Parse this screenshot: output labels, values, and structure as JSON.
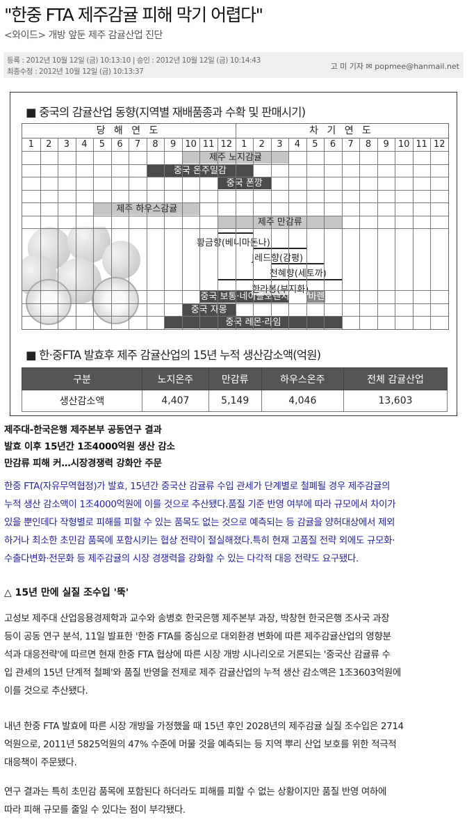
{
  "article": {
    "title": "\"한중 FTA 제주감귤 피해 막기 어렵다\"",
    "subtitle": "<와이드> 개방 앞둔 제주 감귤산업 진단",
    "meta": {
      "registered": "등록 : 2012년 10월 12일 (금) 10:13:10 | 승인 : 2012년 10월 12일 (금) 10:14:43",
      "modified": "최종수정 : 2012년 10월 12일 (금) 10:13:37",
      "byline": "고 미 기자 ✉ popmee@hanmail.net"
    }
  },
  "figure": {
    "chart_title": "■ 중국의 감귤산업 동향(지역별 재배품종과 수확 및 판매시기)",
    "year_headers": [
      "당 해 연 도",
      "차 기 연 도"
    ],
    "months": [
      "1",
      "2",
      "3",
      "4",
      "5",
      "6",
      "7",
      "8",
      "9",
      "10",
      "11",
      "12",
      "1",
      "2",
      "3",
      "4",
      "5",
      "6",
      "7",
      "8",
      "9",
      "10",
      "11",
      "12"
    ],
    "colors": {
      "light": "#c6c6c6",
      "dark": "#4b4b4b",
      "mid": "#8a8a8a"
    },
    "bars": [
      {
        "label": "제주 노지감귤",
        "start": 9,
        "end": 15,
        "row": 0,
        "style": "light"
      },
      {
        "label": "중국 온주밀감",
        "start": 7,
        "end": 13,
        "row": 1,
        "style": "dark"
      },
      {
        "label": "중국 폰깡",
        "start": 11,
        "end": 14,
        "row": 2,
        "style": "dark"
      },
      {
        "label": "제주 하우스감귤",
        "start": 4,
        "end": 10,
        "row": 4,
        "style": "light"
      },
      {
        "label": "제주 만감류",
        "start": 11,
        "end": 18,
        "row": 5,
        "style": "light"
      },
      {
        "label": "중국 보통·네이블오렌지",
        "start": 10,
        "end": 15,
        "row": 11,
        "style": "dark"
      },
      {
        "label": "바렌시아 오렌지",
        "start": 16,
        "end": 17,
        "row": 11,
        "style": "mid"
      },
      {
        "label": "중국 자몽",
        "start": 9,
        "end": 12,
        "row": 12,
        "style": "dark"
      },
      {
        "label": "중국 레몬·라임",
        "start": 8,
        "end": 18,
        "row": 13,
        "style": "dark"
      }
    ],
    "lines": [
      {
        "label": "황금향(베니마돈나)",
        "start": 11,
        "end": 13
      },
      {
        "label": "J레드향(감평)",
        "start": 13,
        "end": 16
      },
      {
        "label": "천혜향(세토까)",
        "start": 14,
        "end": 17
      },
      {
        "label": "한라봉(부지화)",
        "start": 11,
        "end": 18
      }
    ],
    "table_title": "■ 한·중FTA 발효후 제주 감귤산업의 15년 누적 생산감소액(억원)",
    "table": {
      "headers": [
        "구분",
        "노지온주",
        "만감류",
        "하우스온주",
        "전체 감귤산업"
      ],
      "row": [
        "생산감소액",
        "4,407",
        "5,149",
        "4,046",
        "13,603"
      ]
    }
  },
  "leads": [
    "제주대-한국은행 제주본부 공동연구 결과",
    "발효 이후 15년간 1조4000억원 생산 감소",
    "만감류 피해 커…시장경쟁력 강화안 주문"
  ],
  "intro": [
    "한중 FTA(자유무역협정)가 발효, 15년간 중국산 감귤류 수입 관세가 단계별로 철폐될 경우 제주감귤의",
    "누적 생산 감소액이 1조4000억원에 이를 것으로 추산됐다.품질 기준 반영 여부에 따라 규모에서 차이가",
    "있을 뿐인데다 작형별로 피해를 피할 수 있는 품목도 없는 것으로 예측되는 등 감귤을 양허대상에서 제외",
    "하거나 최소한 초민감 품목에 포함시키는 협상 전략이 절실해졌다.특히 현재 고품질 전략 외에도 규모화·",
    "수출다변화·전문화 등 제주감귤의 시장 경쟁력을 강화할 수 있는 다각적 대응 전략도 요구됐다."
  ],
  "section_head": "△ 15년 만에 실질 조수입 '뚝'",
  "paragraphs": [
    [
      "고성보 제주대 산업응용경제학과 교수와 송병호 한국은행 제주본부 과장, 박창현 한국은행 조사국 과장",
      "등이 공동 연구 분석, 11일 발표한 '한중 FTA를 중심으로 대외환경 변화에 따른 제주감귤산업의 영향분",
      "석과 대응전략'에 따르면 현재 한중 FTA 협상에 따른 시장 개방 시나리오로 거론되는 '중국산 감귤류 수",
      "입 관세의 15년 단계적 철폐'와 품질 반영을 전제로 제주 감귤산업의 누적 생산 감소액은 1조3603억원에",
      "이를 것으로 추산됐다."
    ],
    [
      "내년 한중 FTA 발효에 따른 시장 개방을 가정했을 때 15년 후인 2028년의 제주감귤 실질 조수입은 2714",
      "억원으로, 2011년 5825억원의 47% 수준에 머물 것을 예측되는 등 지역 뿌리 산업 보호를 위한 적극적",
      "대응책이 주문됐다."
    ],
    [
      "연구 결과는 특히 초민감 품목에 포함된다 하더라도 피해를 피할 수 없는 상황이지만 품질 반영 여하에",
      "따라 피해 규모를 줄일 수 있다는 점이 부각됐다."
    ]
  ]
}
